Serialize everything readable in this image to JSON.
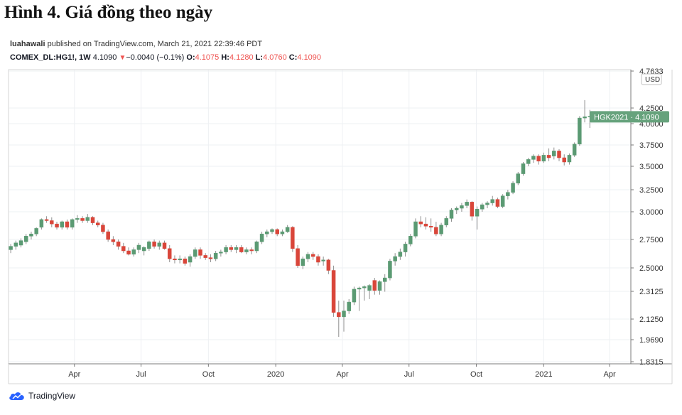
{
  "title": "Hình 4. Giá đồng theo ngày",
  "publisher": {
    "author": "luahawali",
    "text": " published on TradingView.com, March 21, 2021 22:39:46 PDT"
  },
  "symbol_line": {
    "symbol": "COMEX_DL:HG1!, 1W",
    "last": "4.1090",
    "change": "−0.0040 (−0.1%)",
    "o_label": "O:",
    "o": "4.1075",
    "h_label": "H:",
    "h": "4.1280",
    "l_label": "L:",
    "l": "4.0760",
    "c_label": "C:",
    "c": "4.1090"
  },
  "brand": {
    "name": "TradingView",
    "icon": "tradingview-cloud-icon"
  },
  "colors": {
    "up": "#5b9a73",
    "down": "#d9463a",
    "grid": "#eef0f3",
    "axis": "#7b7b7b",
    "label_bg": "#66a27c"
  },
  "chart_data": {
    "type": "candlestick",
    "ylabel_unit": "USD",
    "ylim": [
      1.8315,
      4.7633
    ],
    "y_ticks": [
      "4.7633",
      "4.2500",
      "4.0000",
      "3.7500",
      "3.5000",
      "3.2500",
      "3.0000",
      "2.7500",
      "2.5000",
      "2.3125",
      "2.1250",
      "1.9690",
      "1.8315"
    ],
    "y_tick_values": [
      4.7633,
      4.25,
      4.0,
      3.75,
      3.5,
      3.25,
      3.0,
      2.75,
      2.5,
      2.3125,
      2.125,
      1.969,
      1.8315
    ],
    "x_ticks": [
      "Apr",
      "Jul",
      "Oct",
      "2020",
      "Apr",
      "Jul",
      "Oct",
      "2021",
      "Apr"
    ],
    "x_tick_dates": [
      "2019-04-01",
      "2019-07-01",
      "2019-10-01",
      "2020-01-01",
      "2020-04-01",
      "2020-07-01",
      "2020-10-01",
      "2021-01-01",
      "2021-04-01"
    ],
    "x_range": [
      "2019-01-01",
      "2021-04-30"
    ],
    "price_label": "HGK2021  ·  4.1090",
    "price_value": 4.109,
    "grid": true,
    "candles": [
      {
        "d": "2019-01-04",
        "o": 2.66,
        "h": 2.71,
        "l": 2.63,
        "c": 2.69
      },
      {
        "d": "2019-01-11",
        "o": 2.69,
        "h": 2.74,
        "l": 2.66,
        "c": 2.72
      },
      {
        "d": "2019-01-18",
        "o": 2.7,
        "h": 2.76,
        "l": 2.68,
        "c": 2.74
      },
      {
        "d": "2019-01-25",
        "o": 2.73,
        "h": 2.8,
        "l": 2.71,
        "c": 2.78
      },
      {
        "d": "2019-02-01",
        "o": 2.78,
        "h": 2.82,
        "l": 2.75,
        "c": 2.8
      },
      {
        "d": "2019-02-08",
        "o": 2.8,
        "h": 2.86,
        "l": 2.78,
        "c": 2.85
      },
      {
        "d": "2019-02-15",
        "o": 2.86,
        "h": 2.94,
        "l": 2.84,
        "c": 2.93
      },
      {
        "d": "2019-02-22",
        "o": 2.93,
        "h": 2.96,
        "l": 2.9,
        "c": 2.92
      },
      {
        "d": "2019-03-01",
        "o": 2.92,
        "h": 2.95,
        "l": 2.86,
        "c": 2.89
      },
      {
        "d": "2019-03-08",
        "o": 2.89,
        "h": 2.91,
        "l": 2.84,
        "c": 2.86
      },
      {
        "d": "2019-03-15",
        "o": 2.86,
        "h": 2.92,
        "l": 2.84,
        "c": 2.91
      },
      {
        "d": "2019-03-22",
        "o": 2.91,
        "h": 2.93,
        "l": 2.84,
        "c": 2.86
      },
      {
        "d": "2019-03-29",
        "o": 2.86,
        "h": 2.94,
        "l": 2.84,
        "c": 2.93
      },
      {
        "d": "2019-04-05",
        "o": 2.93,
        "h": 2.97,
        "l": 2.9,
        "c": 2.94
      },
      {
        "d": "2019-04-12",
        "o": 2.94,
        "h": 2.96,
        "l": 2.9,
        "c": 2.92
      },
      {
        "d": "2019-04-19",
        "o": 2.92,
        "h": 2.98,
        "l": 2.9,
        "c": 2.95
      },
      {
        "d": "2019-04-26",
        "o": 2.95,
        "h": 2.96,
        "l": 2.88,
        "c": 2.9
      },
      {
        "d": "2019-05-03",
        "o": 2.9,
        "h": 2.92,
        "l": 2.86,
        "c": 2.88
      },
      {
        "d": "2019-05-10",
        "o": 2.88,
        "h": 2.9,
        "l": 2.8,
        "c": 2.82
      },
      {
        "d": "2019-05-17",
        "o": 2.82,
        "h": 2.84,
        "l": 2.73,
        "c": 2.75
      },
      {
        "d": "2019-05-24",
        "o": 2.75,
        "h": 2.78,
        "l": 2.7,
        "c": 2.73
      },
      {
        "d": "2019-05-31",
        "o": 2.73,
        "h": 2.75,
        "l": 2.66,
        "c": 2.69
      },
      {
        "d": "2019-06-07",
        "o": 2.69,
        "h": 2.72,
        "l": 2.63,
        "c": 2.65
      },
      {
        "d": "2019-06-14",
        "o": 2.65,
        "h": 2.68,
        "l": 2.61,
        "c": 2.62
      },
      {
        "d": "2019-06-21",
        "o": 2.62,
        "h": 2.68,
        "l": 2.6,
        "c": 2.66
      },
      {
        "d": "2019-06-28",
        "o": 2.66,
        "h": 2.72,
        "l": 2.63,
        "c": 2.7
      },
      {
        "d": "2019-07-05",
        "o": 2.65,
        "h": 2.69,
        "l": 2.61,
        "c": 2.68
      },
      {
        "d": "2019-07-12",
        "o": 2.67,
        "h": 2.74,
        "l": 2.65,
        "c": 2.73
      },
      {
        "d": "2019-07-19",
        "o": 2.73,
        "h": 2.75,
        "l": 2.67,
        "c": 2.69
      },
      {
        "d": "2019-07-26",
        "o": 2.69,
        "h": 2.74,
        "l": 2.66,
        "c": 2.72
      },
      {
        "d": "2019-08-02",
        "o": 2.72,
        "h": 2.74,
        "l": 2.66,
        "c": 2.67
      },
      {
        "d": "2019-08-09",
        "o": 2.67,
        "h": 2.7,
        "l": 2.55,
        "c": 2.58
      },
      {
        "d": "2019-08-16",
        "o": 2.58,
        "h": 2.61,
        "l": 2.54,
        "c": 2.57
      },
      {
        "d": "2019-08-23",
        "o": 2.57,
        "h": 2.61,
        "l": 2.54,
        "c": 2.58
      },
      {
        "d": "2019-08-30",
        "o": 2.58,
        "h": 2.6,
        "l": 2.52,
        "c": 2.54
      },
      {
        "d": "2019-09-06",
        "o": 2.55,
        "h": 2.62,
        "l": 2.51,
        "c": 2.6
      },
      {
        "d": "2019-09-13",
        "o": 2.6,
        "h": 2.68,
        "l": 2.58,
        "c": 2.66
      },
      {
        "d": "2019-09-20",
        "o": 2.66,
        "h": 2.68,
        "l": 2.58,
        "c": 2.61
      },
      {
        "d": "2019-09-27",
        "o": 2.61,
        "h": 2.63,
        "l": 2.57,
        "c": 2.59
      },
      {
        "d": "2019-10-04",
        "o": 2.59,
        "h": 2.62,
        "l": 2.55,
        "c": 2.58
      },
      {
        "d": "2019-10-11",
        "o": 2.58,
        "h": 2.65,
        "l": 2.56,
        "c": 2.63
      },
      {
        "d": "2019-10-18",
        "o": 2.63,
        "h": 2.66,
        "l": 2.6,
        "c": 2.64
      },
      {
        "d": "2019-10-25",
        "o": 2.64,
        "h": 2.7,
        "l": 2.62,
        "c": 2.68
      },
      {
        "d": "2019-11-01",
        "o": 2.68,
        "h": 2.7,
        "l": 2.64,
        "c": 2.66
      },
      {
        "d": "2019-11-08",
        "o": 2.66,
        "h": 2.7,
        "l": 2.63,
        "c": 2.68
      },
      {
        "d": "2019-11-15",
        "o": 2.68,
        "h": 2.7,
        "l": 2.63,
        "c": 2.64
      },
      {
        "d": "2019-11-22",
        "o": 2.64,
        "h": 2.68,
        "l": 2.62,
        "c": 2.66
      },
      {
        "d": "2019-11-29",
        "o": 2.66,
        "h": 2.68,
        "l": 2.62,
        "c": 2.65
      },
      {
        "d": "2019-12-06",
        "o": 2.65,
        "h": 2.74,
        "l": 2.63,
        "c": 2.73
      },
      {
        "d": "2019-12-13",
        "o": 2.73,
        "h": 2.82,
        "l": 2.71,
        "c": 2.8
      },
      {
        "d": "2019-12-20",
        "o": 2.8,
        "h": 2.84,
        "l": 2.77,
        "c": 2.82
      },
      {
        "d": "2019-12-27",
        "o": 2.82,
        "h": 2.85,
        "l": 2.8,
        "c": 2.84
      },
      {
        "d": "2020-01-03",
        "o": 2.84,
        "h": 2.85,
        "l": 2.78,
        "c": 2.8
      },
      {
        "d": "2020-01-10",
        "o": 2.8,
        "h": 2.84,
        "l": 2.78,
        "c": 2.82
      },
      {
        "d": "2020-01-17",
        "o": 2.82,
        "h": 2.88,
        "l": 2.81,
        "c": 2.86
      },
      {
        "d": "2020-01-24",
        "o": 2.86,
        "h": 2.87,
        "l": 2.64,
        "c": 2.67
      },
      {
        "d": "2020-01-31",
        "o": 2.67,
        "h": 2.7,
        "l": 2.5,
        "c": 2.52
      },
      {
        "d": "2020-02-07",
        "o": 2.52,
        "h": 2.6,
        "l": 2.49,
        "c": 2.58
      },
      {
        "d": "2020-02-14",
        "o": 2.58,
        "h": 2.64,
        "l": 2.55,
        "c": 2.62
      },
      {
        "d": "2020-02-21",
        "o": 2.62,
        "h": 2.64,
        "l": 2.57,
        "c": 2.6
      },
      {
        "d": "2020-02-28",
        "o": 2.6,
        "h": 2.62,
        "l": 2.52,
        "c": 2.55
      },
      {
        "d": "2020-03-06",
        "o": 2.56,
        "h": 2.6,
        "l": 2.52,
        "c": 2.57
      },
      {
        "d": "2020-03-13",
        "o": 2.57,
        "h": 2.58,
        "l": 2.45,
        "c": 2.48
      },
      {
        "d": "2020-03-20",
        "o": 2.48,
        "h": 2.52,
        "l": 2.14,
        "c": 2.17
      },
      {
        "d": "2020-03-27",
        "o": 2.17,
        "h": 2.25,
        "l": 1.99,
        "c": 2.14
      },
      {
        "d": "2020-04-03",
        "o": 2.14,
        "h": 2.25,
        "l": 2.03,
        "c": 2.18
      },
      {
        "d": "2020-04-10",
        "o": 2.18,
        "h": 2.26,
        "l": 2.16,
        "c": 2.24
      },
      {
        "d": "2020-04-17",
        "o": 2.24,
        "h": 2.35,
        "l": 2.22,
        "c": 2.33
      },
      {
        "d": "2020-04-24",
        "o": 2.33,
        "h": 2.35,
        "l": 2.18,
        "c": 2.34
      },
      {
        "d": "2020-05-01",
        "o": 2.34,
        "h": 2.36,
        "l": 2.25,
        "c": 2.35
      },
      {
        "d": "2020-05-08",
        "o": 2.32,
        "h": 2.37,
        "l": 2.26,
        "c": 2.36
      },
      {
        "d": "2020-05-15",
        "o": 2.4,
        "h": 2.42,
        "l": 2.29,
        "c": 2.32
      },
      {
        "d": "2020-05-22",
        "o": 2.32,
        "h": 2.4,
        "l": 2.29,
        "c": 2.39
      },
      {
        "d": "2020-05-29",
        "o": 2.39,
        "h": 2.45,
        "l": 2.31,
        "c": 2.42
      },
      {
        "d": "2020-06-05",
        "o": 2.42,
        "h": 2.58,
        "l": 2.4,
        "c": 2.56
      },
      {
        "d": "2020-06-12",
        "o": 2.56,
        "h": 2.63,
        "l": 2.52,
        "c": 2.6
      },
      {
        "d": "2020-06-19",
        "o": 2.6,
        "h": 2.67,
        "l": 2.57,
        "c": 2.64
      },
      {
        "d": "2020-06-26",
        "o": 2.64,
        "h": 2.73,
        "l": 2.6,
        "c": 2.71
      },
      {
        "d": "2020-07-03",
        "o": 2.71,
        "h": 2.8,
        "l": 2.69,
        "c": 2.78
      },
      {
        "d": "2020-07-10",
        "o": 2.78,
        "h": 2.94,
        "l": 2.76,
        "c": 2.91
      },
      {
        "d": "2020-07-17",
        "o": 2.91,
        "h": 2.96,
        "l": 2.86,
        "c": 2.89
      },
      {
        "d": "2020-07-24",
        "o": 2.89,
        "h": 2.95,
        "l": 2.84,
        "c": 2.87
      },
      {
        "d": "2020-07-31",
        "o": 2.87,
        "h": 2.94,
        "l": 2.82,
        "c": 2.86
      },
      {
        "d": "2020-08-07",
        "o": 2.86,
        "h": 2.91,
        "l": 2.78,
        "c": 2.8
      },
      {
        "d": "2020-08-14",
        "o": 2.8,
        "h": 2.9,
        "l": 2.78,
        "c": 2.88
      },
      {
        "d": "2020-08-21",
        "o": 2.88,
        "h": 2.96,
        "l": 2.86,
        "c": 2.94
      },
      {
        "d": "2020-08-28",
        "o": 2.94,
        "h": 3.04,
        "l": 2.91,
        "c": 3.02
      },
      {
        "d": "2020-09-04",
        "o": 3.02,
        "h": 3.06,
        "l": 2.98,
        "c": 3.04
      },
      {
        "d": "2020-09-11",
        "o": 3.04,
        "h": 3.1,
        "l": 3.0,
        "c": 3.07
      },
      {
        "d": "2020-09-18",
        "o": 3.07,
        "h": 3.14,
        "l": 3.04,
        "c": 3.11
      },
      {
        "d": "2020-09-25",
        "o": 3.11,
        "h": 3.12,
        "l": 2.92,
        "c": 2.96
      },
      {
        "d": "2020-10-02",
        "o": 2.96,
        "h": 3.06,
        "l": 2.84,
        "c": 3.03
      },
      {
        "d": "2020-10-09",
        "o": 3.03,
        "h": 3.1,
        "l": 3.0,
        "c": 3.08
      },
      {
        "d": "2020-10-16",
        "o": 3.08,
        "h": 3.12,
        "l": 3.04,
        "c": 3.1
      },
      {
        "d": "2020-10-23",
        "o": 3.1,
        "h": 3.18,
        "l": 3.07,
        "c": 3.14
      },
      {
        "d": "2020-10-30",
        "o": 3.14,
        "h": 3.16,
        "l": 3.04,
        "c": 3.06
      },
      {
        "d": "2020-11-06",
        "o": 3.06,
        "h": 3.2,
        "l": 3.04,
        "c": 3.18
      },
      {
        "d": "2020-11-13",
        "o": 3.18,
        "h": 3.25,
        "l": 3.14,
        "c": 3.22
      },
      {
        "d": "2020-11-20",
        "o": 3.22,
        "h": 3.34,
        "l": 3.2,
        "c": 3.32
      },
      {
        "d": "2020-11-27",
        "o": 3.32,
        "h": 3.44,
        "l": 3.3,
        "c": 3.42
      },
      {
        "d": "2020-12-04",
        "o": 3.42,
        "h": 3.55,
        "l": 3.4,
        "c": 3.53
      },
      {
        "d": "2020-12-11",
        "o": 3.53,
        "h": 3.6,
        "l": 3.5,
        "c": 3.58
      },
      {
        "d": "2020-12-18",
        "o": 3.58,
        "h": 3.64,
        "l": 3.54,
        "c": 3.62
      },
      {
        "d": "2020-12-25",
        "o": 3.62,
        "h": 3.64,
        "l": 3.52,
        "c": 3.56
      },
      {
        "d": "2021-01-01",
        "o": 3.56,
        "h": 3.66,
        "l": 3.54,
        "c": 3.63
      },
      {
        "d": "2021-01-08",
        "o": 3.63,
        "h": 3.71,
        "l": 3.56,
        "c": 3.6
      },
      {
        "d": "2021-01-15",
        "o": 3.62,
        "h": 3.72,
        "l": 3.58,
        "c": 3.68
      },
      {
        "d": "2021-01-22",
        "o": 3.68,
        "h": 3.7,
        "l": 3.56,
        "c": 3.6
      },
      {
        "d": "2021-01-29",
        "o": 3.6,
        "h": 3.64,
        "l": 3.51,
        "c": 3.55
      },
      {
        "d": "2021-02-05",
        "o": 3.55,
        "h": 3.65,
        "l": 3.52,
        "c": 3.63
      },
      {
        "d": "2021-02-12",
        "o": 3.63,
        "h": 3.78,
        "l": 3.61,
        "c": 3.76
      },
      {
        "d": "2021-02-19",
        "o": 3.76,
        "h": 4.12,
        "l": 3.74,
        "c": 4.09
      },
      {
        "d": "2021-02-26",
        "o": 4.09,
        "h": 4.36,
        "l": 4.02,
        "c": 4.11
      },
      {
        "d": "2021-03-05",
        "o": 4.11,
        "h": 4.22,
        "l": 3.95,
        "c": 4.12
      },
      {
        "d": "2021-03-12",
        "o": 4.1,
        "h": 4.2,
        "l": 4.06,
        "c": 4.11
      },
      {
        "d": "2021-03-19",
        "o": 4.1075,
        "h": 4.128,
        "l": 4.076,
        "c": 4.109
      }
    ]
  }
}
